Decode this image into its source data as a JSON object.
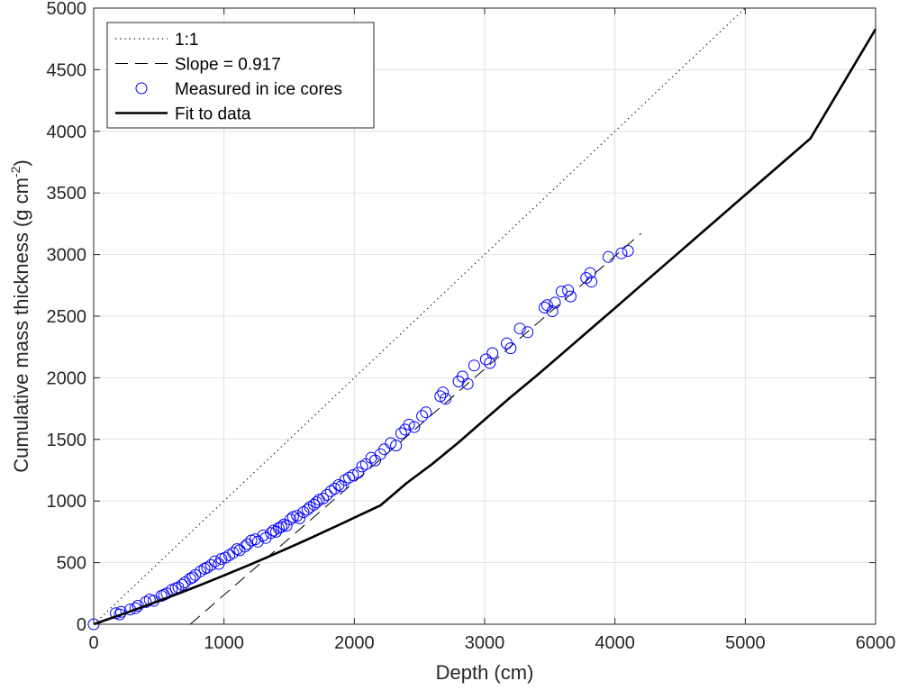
{
  "chart_data": {
    "type": "scatter",
    "title": "",
    "xlabel": "Depth (cm)",
    "ylabel_main": "Cumulative mass thickness (g cm",
    "ylabel_sup": "-2",
    "ylabel_close": ")",
    "xlim": [
      0,
      6000
    ],
    "ylim": [
      0,
      5000
    ],
    "x_ticks": [
      0,
      1000,
      2000,
      3000,
      4000,
      5000,
      6000
    ],
    "y_ticks": [
      0,
      500,
      1000,
      1500,
      2000,
      2500,
      3000,
      3500,
      4000,
      4500,
      5000
    ],
    "grid": true,
    "legend_position": "top-left",
    "legend": [
      {
        "label": "1:1",
        "style": "dotted"
      },
      {
        "label": "Slope = 0.917",
        "style": "dashed"
      },
      {
        "label": "Measured in ice cores",
        "style": "circle"
      },
      {
        "label": "Fit to data",
        "style": "solid"
      }
    ],
    "series": [
      {
        "name": "1:1",
        "kind": "line",
        "x": [
          0,
          5000
        ],
        "y": [
          0,
          5000
        ]
      },
      {
        "name": "Slope = 0.917",
        "kind": "line",
        "x": [
          741,
          4200
        ],
        "y": [
          0,
          3172
        ]
      },
      {
        "name": "Fit to data",
        "kind": "line",
        "x": [
          0,
          50,
          100,
          150,
          200,
          250,
          300,
          400,
          500,
          600,
          700,
          800,
          900,
          1000,
          1100,
          1200,
          1300,
          1400,
          1500,
          1600,
          1700,
          1800,
          1900,
          2000,
          2200,
          2400,
          2600,
          2800,
          3000,
          3200,
          3400,
          3600,
          3800,
          4000,
          4200,
          4500,
          5000,
          5500,
          6000
        ],
        "y": [
          0,
          18,
          37,
          55,
          74,
          93,
          112,
          150,
          189,
          229,
          270,
          311,
          353,
          396,
          440,
          484,
          529,
          575,
          622,
          669,
          717,
          766,
          815,
          865,
          964,
          1144,
          1302,
          1476,
          1660,
          1843,
          2018,
          2200,
          2383,
          2566,
          2750,
          3025,
          3484,
          3942,
          4830
        ]
      },
      {
        "name": "Measured in ice cores",
        "kind": "scatter",
        "x": [
          0,
          170,
          200,
          210,
          280,
          320,
          340,
          400,
          430,
          460,
          520,
          540,
          560,
          600,
          630,
          650,
          680,
          700,
          740,
          760,
          780,
          820,
          850,
          870,
          900,
          930,
          960,
          980,
          1010,
          1040,
          1070,
          1100,
          1120,
          1160,
          1180,
          1210,
          1240,
          1260,
          1300,
          1320,
          1360,
          1380,
          1400,
          1420,
          1440,
          1460,
          1480,
          1510,
          1530,
          1560,
          1580,
          1610,
          1640,
          1660,
          1690,
          1710,
          1730,
          1760,
          1790,
          1820,
          1850,
          1880,
          1900,
          1930,
          1960,
          1990,
          2030,
          2060,
          2090,
          2130,
          2160,
          2200,
          2230,
          2280,
          2320,
          2360,
          2390,
          2420,
          2460,
          2520,
          2550,
          2660,
          2680,
          2700,
          2800,
          2830,
          2870,
          2920,
          3010,
          3040,
          3060,
          3170,
          3200,
          3270,
          3330,
          3460,
          3480,
          3520,
          3540,
          3590,
          3640,
          3660,
          3780,
          3810,
          3820,
          3950,
          4050,
          4100
        ],
        "y": [
          0,
          90,
          80,
          100,
          120,
          130,
          150,
          180,
          200,
          190,
          230,
          240,
          250,
          280,
          290,
          300,
          320,
          340,
          370,
          380,
          400,
          430,
          450,
          460,
          480,
          510,
          490,
          530,
          540,
          560,
          580,
          610,
          600,
          630,
          650,
          680,
          690,
          670,
          720,
          700,
          740,
          760,
          750,
          780,
          790,
          810,
          800,
          850,
          870,
          880,
          860,
          910,
          930,
          950,
          970,
          990,
          1010,
          1020,
          1050,
          1080,
          1100,
          1130,
          1120,
          1170,
          1190,
          1210,
          1230,
          1280,
          1300,
          1350,
          1330,
          1380,
          1420,
          1470,
          1450,
          1550,
          1580,
          1620,
          1600,
          1690,
          1720,
          1850,
          1880,
          1830,
          1970,
          2010,
          1950,
          2100,
          2150,
          2120,
          2200,
          2280,
          2240,
          2400,
          2370,
          2570,
          2590,
          2540,
          2610,
          2700,
          2710,
          2660,
          2810,
          2850,
          2780,
          2980,
          3010,
          3030
        ]
      }
    ]
  }
}
